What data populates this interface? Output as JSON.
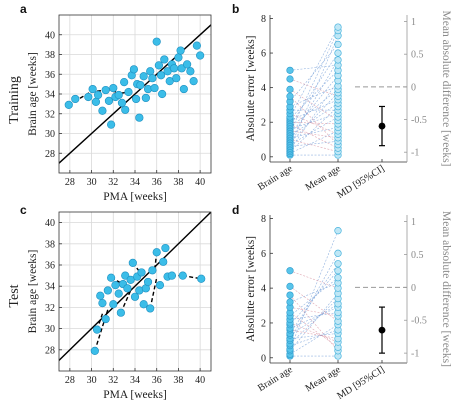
{
  "chart_data": [
    {
      "panel": "a",
      "type": "scatter",
      "row_label": "Training",
      "xlabel": "PMA [weeks]",
      "ylabel": "Brain age [weeks]",
      "xlim": [
        27,
        41
      ],
      "ylim": [
        26,
        42
      ],
      "xticks": [
        "28",
        "30",
        "32",
        "34",
        "36",
        "38",
        "40"
      ],
      "yticks": [
        "28",
        "30",
        "32",
        "34",
        "36",
        "38",
        "40"
      ],
      "grid": true,
      "identity_line": true,
      "colors": {
        "marker": "#3bbde8",
        "marker_edge": "#1e8fc0",
        "identity": "#000000",
        "link": "#000000"
      },
      "points": [
        {
          "x": 27.9,
          "y": 32.9
        },
        {
          "x": 28.5,
          "y": 33.5
        },
        {
          "x": 29.7,
          "y": 33.7
        },
        {
          "x": 30.1,
          "y": 34.5
        },
        {
          "x": 30.4,
          "y": 33.2
        },
        {
          "x": 30.6,
          "y": 33.9
        },
        {
          "x": 31.0,
          "y": 32.3
        },
        {
          "x": 31.3,
          "y": 34.4
        },
        {
          "x": 31.6,
          "y": 33.3
        },
        {
          "x": 31.8,
          "y": 30.9
        },
        {
          "x": 32.0,
          "y": 34.6
        },
        {
          "x": 32.2,
          "y": 33.7
        },
        {
          "x": 32.5,
          "y": 33.9
        },
        {
          "x": 32.8,
          "y": 33.1
        },
        {
          "x": 33.0,
          "y": 35.2
        },
        {
          "x": 33.1,
          "y": 32.4
        },
        {
          "x": 33.4,
          "y": 34.2
        },
        {
          "x": 33.7,
          "y": 35.9
        },
        {
          "x": 33.9,
          "y": 36.5
        },
        {
          "x": 34.1,
          "y": 33.5
        },
        {
          "x": 34.2,
          "y": 35.0
        },
        {
          "x": 34.4,
          "y": 31.6
        },
        {
          "x": 34.5,
          "y": 34.9
        },
        {
          "x": 34.8,
          "y": 35.8
        },
        {
          "x": 35.0,
          "y": 33.6
        },
        {
          "x": 35.2,
          "y": 34.5
        },
        {
          "x": 35.4,
          "y": 36.3
        },
        {
          "x": 35.6,
          "y": 35.6
        },
        {
          "x": 35.8,
          "y": 34.6
        },
        {
          "x": 36.0,
          "y": 39.3
        },
        {
          "x": 36.2,
          "y": 36.9
        },
        {
          "x": 36.4,
          "y": 35.9
        },
        {
          "x": 36.5,
          "y": 34.0
        },
        {
          "x": 36.7,
          "y": 37.5
        },
        {
          "x": 37.0,
          "y": 36.3
        },
        {
          "x": 37.2,
          "y": 35.3
        },
        {
          "x": 37.4,
          "y": 37.0
        },
        {
          "x": 37.6,
          "y": 36.6
        },
        {
          "x": 37.8,
          "y": 35.6
        },
        {
          "x": 38.0,
          "y": 37.7
        },
        {
          "x": 38.3,
          "y": 36.6
        },
        {
          "x": 38.5,
          "y": 34.5
        },
        {
          "x": 38.8,
          "y": 37.0
        },
        {
          "x": 39.1,
          "y": 36.3
        },
        {
          "x": 39.4,
          "y": 35.3
        },
        {
          "x": 39.7,
          "y": 38.9
        },
        {
          "x": 40.0,
          "y": 37.9
        },
        {
          "x": 38.2,
          "y": 38.4
        }
      ],
      "links": [
        [
          {
            "x": 27.9,
            "y": 32.9
          },
          {
            "x": 29.9,
            "y": 34.2
          }
        ],
        [
          {
            "x": 29.9,
            "y": 34.2
          },
          {
            "x": 31.3,
            "y": 34.4
          }
        ],
        [
          {
            "x": 31.3,
            "y": 34.4
          },
          {
            "x": 32.8,
            "y": 34.1
          }
        ],
        [
          {
            "x": 32.8,
            "y": 34.1
          },
          {
            "x": 33.4,
            "y": 34.2
          }
        ]
      ]
    },
    {
      "panel": "b",
      "type": "scatter",
      "ylabel": "Absolute error [weeks]",
      "ylabel_right": "Mean absolute difference [weeks]",
      "xticks": [
        "Brain age",
        "Mean age",
        "MD [95%CI]"
      ],
      "ylim": [
        -0.3,
        8.2
      ],
      "yticks": [
        "0",
        "2",
        "4",
        "6",
        "8"
      ],
      "ylim_right": [
        -1.15,
        1.1
      ],
      "yticks_right": [
        "-1",
        "-0.5",
        "0",
        "0.5",
        "1"
      ],
      "brain_age_errors": [
        0.1,
        0.2,
        0.3,
        0.4,
        0.5,
        0.6,
        0.7,
        0.8,
        0.9,
        1.0,
        1.1,
        1.2,
        1.3,
        1.4,
        1.5,
        1.6,
        1.7,
        1.8,
        1.9,
        2.0,
        2.1,
        2.2,
        2.3,
        2.5,
        2.7,
        2.9,
        3.2,
        3.5,
        3.9,
        4.5,
        5.0
      ],
      "mean_age_errors": [
        0.1,
        0.3,
        0.5,
        0.7,
        0.9,
        1.1,
        1.3,
        1.5,
        1.7,
        1.9,
        2.1,
        2.3,
        2.5,
        2.7,
        2.9,
        3.1,
        3.3,
        3.5,
        3.7,
        3.9,
        4.1,
        4.4,
        4.7,
        5.0,
        5.3,
        5.6,
        6.0,
        6.5,
        7.0,
        7.3,
        7.5
      ],
      "md": {
        "mean": -0.6,
        "ci_low": -0.9,
        "ci_high": -0.3
      },
      "colors": {
        "marker": "#58c4ea",
        "pair_blue": "#6e9ad6",
        "pair_red": "#d68a9a",
        "md": "#000000",
        "zero": "#999999"
      }
    },
    {
      "panel": "c",
      "type": "scatter",
      "row_label": "Test",
      "xlabel": "PMA [weeks]",
      "ylabel": "Brain age [weeks]",
      "xlim": [
        27,
        41
      ],
      "ylim": [
        26,
        41
      ],
      "xticks": [
        "28",
        "30",
        "32",
        "34",
        "36",
        "38",
        "40"
      ],
      "yticks": [
        "28",
        "30",
        "32",
        "34",
        "36",
        "38",
        "40"
      ],
      "grid": true,
      "identity_line": true,
      "colors": {
        "marker": "#3bbde8",
        "marker_edge": "#1e8fc0",
        "identity": "#000000",
        "link": "#000000"
      },
      "points": [
        {
          "x": 30.3,
          "y": 27.9
        },
        {
          "x": 30.5,
          "y": 29.9
        },
        {
          "x": 30.8,
          "y": 33.1
        },
        {
          "x": 31.0,
          "y": 32.4
        },
        {
          "x": 31.3,
          "y": 30.9
        },
        {
          "x": 31.5,
          "y": 33.6
        },
        {
          "x": 31.8,
          "y": 34.8
        },
        {
          "x": 32.0,
          "y": 32.3
        },
        {
          "x": 32.2,
          "y": 34.1
        },
        {
          "x": 32.5,
          "y": 33.3
        },
        {
          "x": 32.7,
          "y": 31.5
        },
        {
          "x": 32.9,
          "y": 34.2
        },
        {
          "x": 33.1,
          "y": 35.0
        },
        {
          "x": 33.3,
          "y": 33.8
        },
        {
          "x": 33.6,
          "y": 34.6
        },
        {
          "x": 33.8,
          "y": 36.2
        },
        {
          "x": 34.0,
          "y": 33.0
        },
        {
          "x": 34.2,
          "y": 34.9
        },
        {
          "x": 34.4,
          "y": 33.6
        },
        {
          "x": 34.6,
          "y": 35.3
        },
        {
          "x": 34.8,
          "y": 32.3
        },
        {
          "x": 35.0,
          "y": 33.8
        },
        {
          "x": 35.2,
          "y": 34.4
        },
        {
          "x": 35.4,
          "y": 31.9
        },
        {
          "x": 35.6,
          "y": 35.5
        },
        {
          "x": 36.0,
          "y": 37.2
        },
        {
          "x": 36.3,
          "y": 34.1
        },
        {
          "x": 36.6,
          "y": 36.3
        },
        {
          "x": 37.0,
          "y": 34.9
        },
        {
          "x": 37.4,
          "y": 35.0
        },
        {
          "x": 38.4,
          "y": 35.0
        },
        {
          "x": 40.1,
          "y": 34.7
        },
        {
          "x": 36.8,
          "y": 37.6
        }
      ],
      "links": [
        [
          {
            "x": 30.3,
            "y": 27.9
          },
          {
            "x": 31.5,
            "y": 31.8
          }
        ],
        [
          {
            "x": 30.5,
            "y": 29.9
          },
          {
            "x": 31.0,
            "y": 31.4
          }
        ],
        [
          {
            "x": 32.7,
            "y": 31.5
          },
          {
            "x": 33.6,
            "y": 33.6
          }
        ],
        [
          {
            "x": 34.8,
            "y": 32.3
          },
          {
            "x": 35.4,
            "y": 31.9
          }
        ],
        [
          {
            "x": 35.4,
            "y": 31.9
          },
          {
            "x": 36.0,
            "y": 34.8
          }
        ],
        [
          {
            "x": 36.0,
            "y": 37.2
          },
          {
            "x": 35.8,
            "y": 35.4
          }
        ],
        [
          {
            "x": 37.4,
            "y": 35.0
          },
          {
            "x": 38.4,
            "y": 35.0
          }
        ],
        [
          {
            "x": 38.4,
            "y": 35.0
          },
          {
            "x": 40.1,
            "y": 34.7
          }
        ],
        [
          {
            "x": 31.8,
            "y": 34.8
          },
          {
            "x": 32.9,
            "y": 34.2
          }
        ],
        [
          {
            "x": 33.8,
            "y": 36.2
          },
          {
            "x": 34.4,
            "y": 35.4
          }
        ]
      ]
    },
    {
      "panel": "d",
      "type": "scatter",
      "ylabel": "Absolute error [weeks]",
      "ylabel_right": "Mean absolute difference [weeks]",
      "xticks": [
        "Brain age",
        "Mean age",
        "MD [95%CI]"
      ],
      "ylim": [
        -0.3,
        8.2
      ],
      "yticks": [
        "0",
        "2",
        "4",
        "6",
        "8"
      ],
      "ylim_right": [
        -1.15,
        1.1
      ],
      "yticks_right": [
        "-1",
        "-0.5",
        "0",
        "0.5",
        "1"
      ],
      "brain_age_errors": [
        0.1,
        0.2,
        0.4,
        0.5,
        0.7,
        0.8,
        1.0,
        1.1,
        1.3,
        1.4,
        1.6,
        1.7,
        1.9,
        2.0,
        2.2,
        2.4,
        2.6,
        2.9,
        3.2,
        3.6,
        4.1,
        5.0
      ],
      "mean_age_errors": [
        0.1,
        0.4,
        0.6,
        0.9,
        1.1,
        1.4,
        1.6,
        1.9,
        2.1,
        2.4,
        2.6,
        2.9,
        3.1,
        3.4,
        3.7,
        4.0,
        4.3,
        4.6,
        5.0,
        5.4,
        6.0,
        7.3
      ],
      "md": {
        "mean": -0.65,
        "ci_low": -1.0,
        "ci_high": -0.3
      },
      "colors": {
        "marker": "#58c4ea",
        "pair_blue": "#6e9ad6",
        "pair_red": "#d68a9a",
        "md": "#000000",
        "zero": "#999999"
      }
    }
  ]
}
